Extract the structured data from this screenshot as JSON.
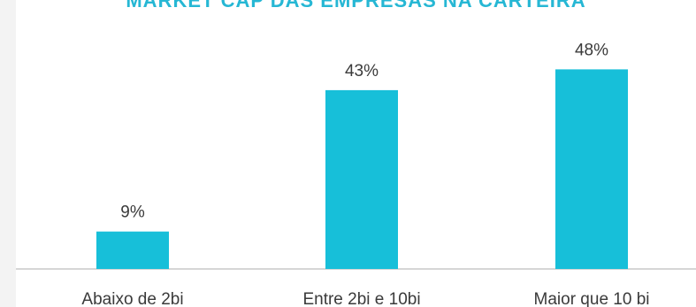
{
  "colors": {
    "bar": "#17bfd9",
    "title": "#26b7d4",
    "label_text": "#3a3a3a",
    "baseline": "#c9c9c9",
    "background": "#ffffff"
  },
  "chart_data": {
    "type": "bar",
    "title": "MARKET CAP DAS EMPRESAS NA CARTEIRA",
    "categories": [
      "Abaixo de 2bi",
      "Entre 2bi e 10bi",
      "Maior que 10 bi"
    ],
    "values": [
      9,
      43,
      48
    ],
    "value_labels": [
      "9%",
      "43%",
      "48%"
    ],
    "unit": "%",
    "ylim": [
      0,
      100
    ],
    "xlabel": "",
    "ylabel": "",
    "grid": false,
    "legend": "none"
  }
}
